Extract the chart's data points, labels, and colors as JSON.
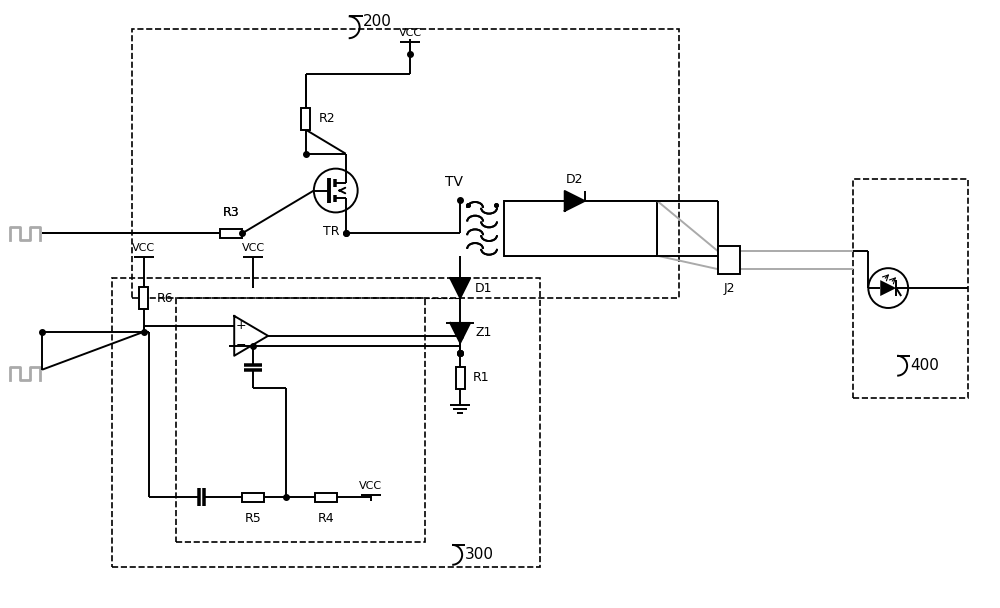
{
  "bg_color": "#ffffff",
  "gray_color": "#aaaaaa",
  "lw": 1.4,
  "dlw": 1.2,
  "label_200": "200",
  "label_300": "300",
  "label_400": "400"
}
